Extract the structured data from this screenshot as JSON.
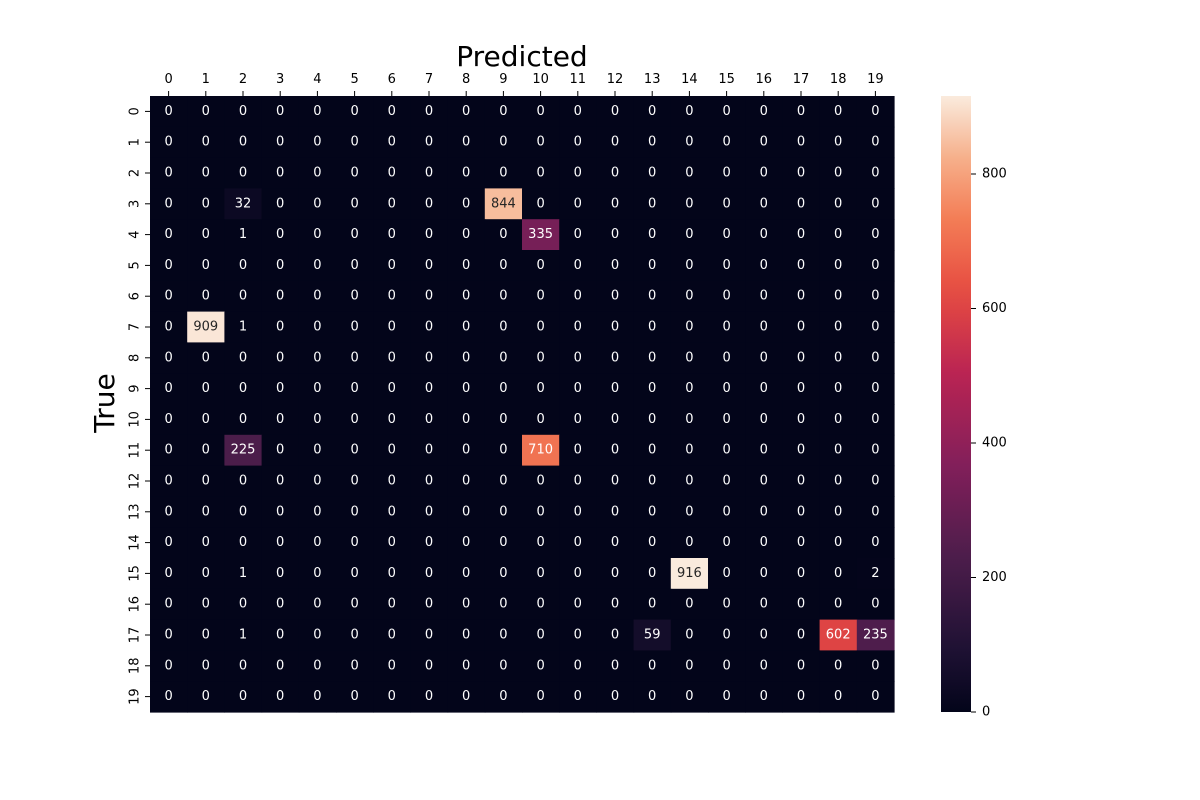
{
  "chart_data": {
    "type": "heatmap",
    "xlabel": "Predicted",
    "ylabel": "True",
    "x_categories": [
      "0",
      "1",
      "2",
      "3",
      "4",
      "5",
      "6",
      "7",
      "8",
      "9",
      "10",
      "11",
      "12",
      "13",
      "14",
      "15",
      "16",
      "17",
      "18",
      "19"
    ],
    "y_categories": [
      "0",
      "1",
      "2",
      "3",
      "4",
      "5",
      "6",
      "7",
      "8",
      "9",
      "10",
      "11",
      "12",
      "13",
      "14",
      "15",
      "16",
      "17",
      "18",
      "19"
    ],
    "x_axis_position": "top",
    "colorbar": {
      "ticks": [
        0,
        200,
        400,
        600,
        800
      ],
      "range": [
        0,
        916
      ],
      "colormap": "rocket"
    },
    "cells": [
      {
        "row": 3,
        "col": 2,
        "value": 32
      },
      {
        "row": 3,
        "col": 9,
        "value": 844
      },
      {
        "row": 4,
        "col": 2,
        "value": 1
      },
      {
        "row": 4,
        "col": 10,
        "value": 335
      },
      {
        "row": 7,
        "col": 1,
        "value": 909
      },
      {
        "row": 7,
        "col": 2,
        "value": 1
      },
      {
        "row": 11,
        "col": 2,
        "value": 225
      },
      {
        "row": 11,
        "col": 10,
        "value": 710
      },
      {
        "row": 15,
        "col": 2,
        "value": 1
      },
      {
        "row": 15,
        "col": 14,
        "value": 916
      },
      {
        "row": 15,
        "col": 19,
        "value": 2
      },
      {
        "row": 17,
        "col": 2,
        "value": 1
      },
      {
        "row": 17,
        "col": 13,
        "value": 59
      },
      {
        "row": 17,
        "col": 18,
        "value": 602
      },
      {
        "row": 17,
        "col": 19,
        "value": 235
      }
    ],
    "default_value": 0
  }
}
